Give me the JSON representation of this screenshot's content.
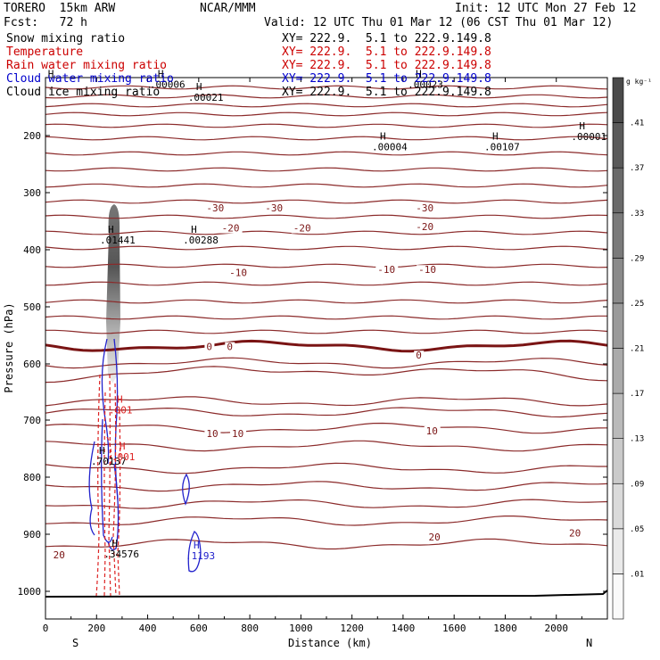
{
  "header": {
    "model": "TORERO  15km ARW",
    "center": "NCAR/MMM",
    "init": "Init: 12 UTC Mon 27 Feb 12",
    "fcst": "Fcst:   72 h",
    "valid": "Valid: 12 UTC Thu 01 Mar 12 (06 CST Thu 01 Mar 12)"
  },
  "legend": [
    {
      "label": "Snow mixing ratio",
      "xy": "XY= 222.9.  5.1 to 222.9.149.8",
      "color": "#000000"
    },
    {
      "label": "Temperature",
      "xy": "XY= 222.9.  5.1 to 222.9.149.8",
      "color": "#cc0000"
    },
    {
      "label": "Rain water mixing ratio",
      "xy": "XY= 222.9.  5.1 to 222.9.149.8",
      "color": "#cc0000"
    },
    {
      "label": "Cloud water mixing ratio",
      "xy": "XY= 222.9.  5.1 to 222.9.149.8",
      "color": "#0000cc"
    },
    {
      "label": "Cloud ice mixing ratio",
      "xy": "XY= 222.9.  5.1 to 222.9.149.8",
      "color": "#000000"
    }
  ],
  "chart_data": {
    "type": "cross-section contour",
    "xlabel": "Distance (km)",
    "ylabel": "Pressure (hPa)",
    "xlim": [
      0,
      2200
    ],
    "ylim": [
      1050,
      100
    ],
    "x_ticks": [
      0,
      200,
      400,
      600,
      800,
      1000,
      1200,
      1400,
      1600,
      1800,
      2000
    ],
    "y_ticks": [
      200,
      300,
      400,
      500,
      600,
      700,
      800,
      900,
      1000
    ],
    "endpoints": {
      "left": "S",
      "right": "N"
    },
    "colorbar": {
      "unit": "g kg⁻¹",
      "ticks": [
        ".01",
        ".05",
        ".09",
        ".13",
        ".17",
        ".21",
        ".25",
        ".29",
        ".33",
        ".37",
        ".41"
      ]
    },
    "temperature_labels": [
      {
        "x": 630,
        "p": 333,
        "text": "-30"
      },
      {
        "x": 860,
        "p": 333,
        "text": "-30"
      },
      {
        "x": 1450,
        "p": 333,
        "text": "-30"
      },
      {
        "x": 690,
        "p": 368,
        "text": "-20"
      },
      {
        "x": 970,
        "p": 368,
        "text": "-20"
      },
      {
        "x": 1450,
        "p": 366,
        "text": "-20"
      },
      {
        "x": 720,
        "p": 446,
        "text": "-10"
      },
      {
        "x": 1300,
        "p": 441,
        "text": "-10"
      },
      {
        "x": 1460,
        "p": 441,
        "text": "-10"
      },
      {
        "x": 630,
        "p": 576,
        "text": "0"
      },
      {
        "x": 710,
        "p": 576,
        "text": "0"
      },
      {
        "x": 1450,
        "p": 591,
        "text": "0"
      },
      {
        "x": 630,
        "p": 730,
        "text": "10"
      },
      {
        "x": 730,
        "p": 730,
        "text": "10"
      },
      {
        "x": 1490,
        "p": 725,
        "text": "10"
      },
      {
        "x": 1500,
        "p": 911,
        "text": "20"
      },
      {
        "x": 2050,
        "p": 904,
        "text": "20"
      },
      {
        "x": 30,
        "p": 942,
        "text": "20"
      }
    ],
    "maxima": [
      {
        "x": 20,
        "p": 118,
        "text": ""
      },
      {
        "x": 450,
        "p": 118,
        "text": ".00006"
      },
      {
        "x": 600,
        "p": 140,
        "text": ".00021"
      },
      {
        "x": 1460,
        "p": 118,
        "text": ".00023"
      },
      {
        "x": 1320,
        "p": 226,
        "text": ".00004"
      },
      {
        "x": 1760,
        "p": 226,
        "text": ".00107"
      },
      {
        "x": 2100,
        "p": 208,
        "text": ".00001"
      },
      {
        "x": 255,
        "p": 389,
        "text": ".01441"
      },
      {
        "x": 580,
        "p": 389,
        "text": ".00288"
      },
      {
        "x": 290,
        "p": 688,
        "text": ".001"
      },
      {
        "x": 220,
        "p": 778,
        "text": ".70137"
      },
      {
        "x": 300,
        "p": 770,
        "text": ".001"
      },
      {
        "x": 270,
        "p": 941,
        "text": ".34576"
      },
      {
        "x": 590,
        "p": 944,
        "text": ".1193"
      }
    ]
  }
}
